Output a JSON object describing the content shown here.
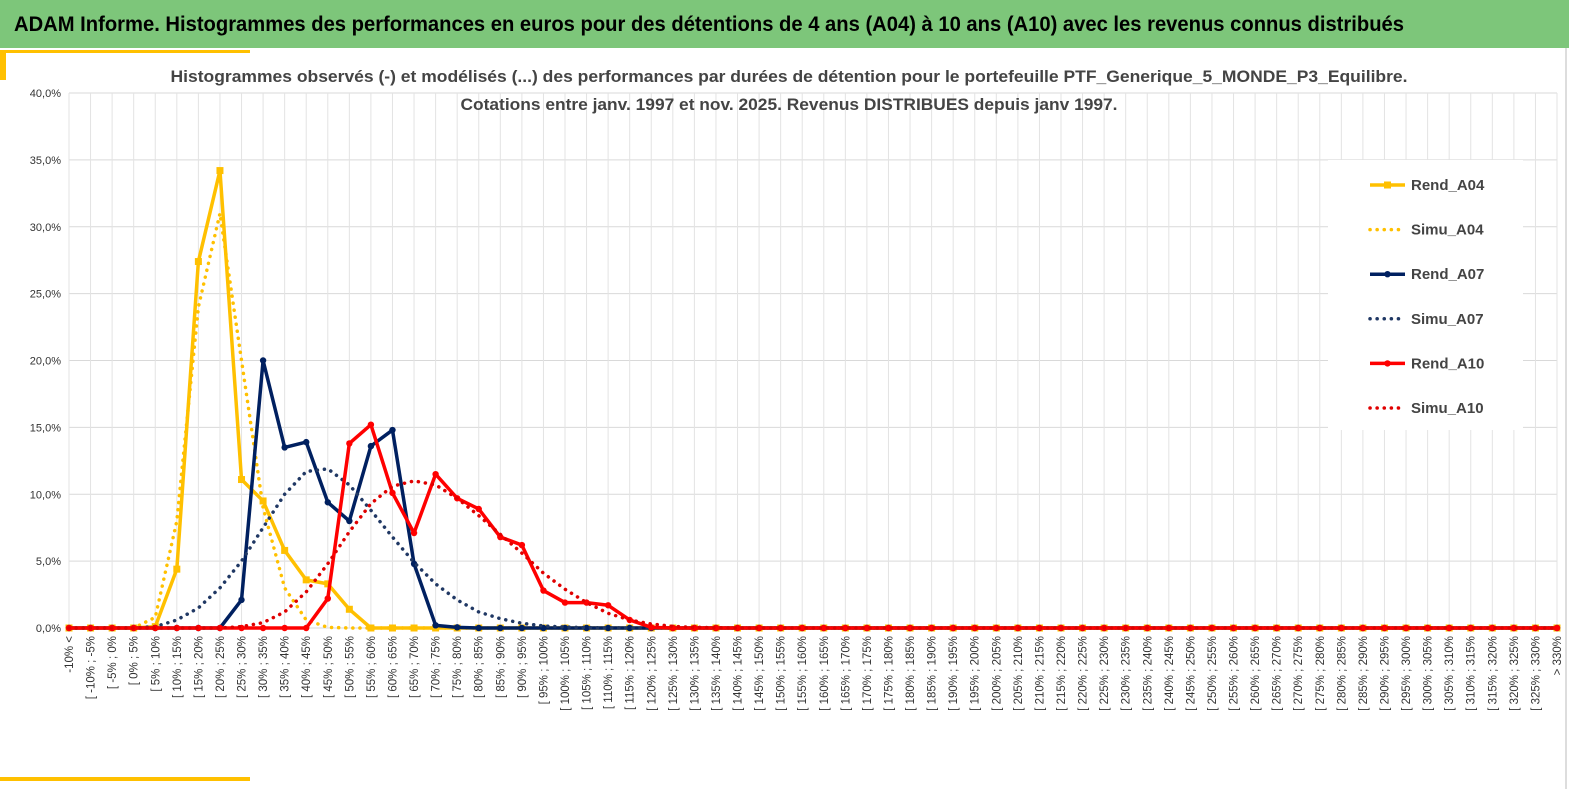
{
  "header": "ADAM Informe. Histogrammes des performances en euros pour des détentions de 4 ans (A04) à 10 ans (A10) avec les revenus connus distribués",
  "chart_data": {
    "type": "line",
    "title": "Histogrammes observés (-) et modélisés (...) des performances par durées de détention pour le portefeuille PTF_Generique_5_MONDE_P3_Equilibre.",
    "subtitle": "Cotations entre janv. 1997 et nov. 2025. Revenus DISTRIBUES depuis janv 1997.",
    "categories": [
      "-10% <",
      "[ -10% ; -5%",
      "[ -5% ; 0%",
      "[ 0% ; 5%",
      "[ 5% ; 10%",
      "[ 10% ; 15%",
      "[ 15% ; 20%",
      "[ 20% ; 25%",
      "[ 25% ; 30%",
      "[ 30% ; 35%",
      "[ 35% ; 40%",
      "[ 40% ; 45%",
      "[ 45% ; 50%",
      "[ 50% ; 55%",
      "[ 55% ; 60%",
      "[ 60% ; 65%",
      "[ 65% ; 70%",
      "[ 70% ; 75%",
      "[ 75% ; 80%",
      "[ 80% ; 85%",
      "[ 85% ; 90%",
      "[ 90% ; 95%",
      "[ 95% ; 100%",
      "[ 100% ; 105%",
      "[ 105% ; 110%",
      "[ 110% ; 115%",
      "[ 115% ; 120%",
      "[ 120% ; 125%",
      "[ 125% ; 130%",
      "[ 130% ; 135%",
      "[ 135% ; 140%",
      "[ 140% ; 145%",
      "[ 145% ; 150%",
      "[ 150% ; 155%",
      "[ 155% ; 160%",
      "[ 160% ; 165%",
      "[ 165% ; 170%",
      "[ 170% ; 175%",
      "[ 175% ; 180%",
      "[ 180% ; 185%",
      "[ 185% ; 190%",
      "[ 190% ; 195%",
      "[ 195% ; 200%",
      "[ 200% ; 205%",
      "[ 205% ; 210%",
      "[ 210% ; 215%",
      "[ 215% ; 220%",
      "[ 220% ; 225%",
      "[ 225% ; 230%",
      "[ 230% ; 235%",
      "[ 235% ; 240%",
      "[ 240% ; 245%",
      "[ 245% ; 250%",
      "[ 250% ; 255%",
      "[ 255% ; 260%",
      "[ 260% ; 265%",
      "[ 265% ; 270%",
      "[ 270% ; 275%",
      "[ 275% ; 280%",
      "[ 280% ; 285%",
      "[ 285% ; 290%",
      "[ 290% ; 295%",
      "[ 295% ; 300%",
      "[ 300% ; 305%",
      "[ 305% ; 310%",
      "[ 310% ; 315%",
      "[ 315% ; 320%",
      "[ 320% ; 325%",
      "[ 325% ; 330%",
      "> 330%"
    ],
    "series": [
      {
        "name": "Rend_A04",
        "color": "#ffc000",
        "dashed": false,
        "marker": "square",
        "values": [
          0,
          0,
          0,
          0,
          0.1,
          4.4,
          27.4,
          34.2,
          11.1,
          9.5,
          5.8,
          3.6,
          3.3,
          1.4,
          0,
          0,
          0,
          0,
          0,
          0,
          0,
          0,
          0,
          0,
          0,
          0,
          0,
          0,
          0,
          0,
          0,
          0,
          0,
          0,
          0,
          0,
          0,
          0,
          0,
          0,
          0,
          0,
          0,
          0,
          0,
          0,
          0,
          0,
          0,
          0,
          0,
          0,
          0,
          0,
          0,
          0,
          0,
          0,
          0,
          0,
          0,
          0,
          0,
          0,
          0,
          0,
          0,
          0,
          0,
          0
        ]
      },
      {
        "name": "Simu_A04",
        "color": "#ffc000",
        "dashed": true,
        "marker": "none",
        "values": [
          0,
          0,
          0,
          0,
          0.8,
          8,
          24,
          31,
          20,
          9,
          3,
          0.6,
          0.05,
          0,
          0,
          0,
          0,
          0,
          0,
          0,
          0,
          0,
          0,
          0,
          0,
          0,
          0,
          0,
          0,
          0,
          0,
          0,
          0,
          0,
          0,
          0,
          0,
          0,
          0,
          0,
          0,
          0,
          0,
          0,
          0,
          0,
          0,
          0,
          0,
          0,
          0,
          0,
          0,
          0,
          0,
          0,
          0,
          0,
          0,
          0,
          0,
          0,
          0,
          0,
          0,
          0,
          0,
          0,
          0,
          0
        ]
      },
      {
        "name": "Rend_A07",
        "color": "#002060",
        "dashed": false,
        "marker": "circle",
        "values": [
          0,
          0,
          0,
          0,
          0,
          0,
          0,
          0,
          2.1,
          20,
          13.5,
          13.9,
          9.4,
          8,
          13.6,
          14.8,
          4.8,
          0.2,
          0.05,
          0,
          0,
          0,
          0,
          0,
          0,
          0,
          0,
          0,
          0,
          0,
          0,
          0,
          0,
          0,
          0,
          0,
          0,
          0,
          0,
          0,
          0,
          0,
          0,
          0,
          0,
          0,
          0,
          0,
          0,
          0,
          0,
          0,
          0,
          0,
          0,
          0,
          0,
          0,
          0,
          0,
          0,
          0,
          0,
          0,
          0,
          0,
          0,
          0,
          0,
          0
        ]
      },
      {
        "name": "Simu_A07",
        "color": "#203864",
        "dashed": true,
        "marker": "none",
        "values": [
          0,
          0,
          0,
          0,
          0.1,
          0.6,
          1.5,
          3,
          5,
          7.5,
          10,
          11.7,
          11.9,
          10.7,
          8.8,
          6.8,
          4.9,
          3.3,
          2.1,
          1.2,
          0.7,
          0.35,
          0.15,
          0.07,
          0.03,
          0.01,
          0,
          0,
          0,
          0,
          0,
          0,
          0,
          0,
          0,
          0,
          0,
          0,
          0,
          0,
          0,
          0,
          0,
          0,
          0,
          0,
          0,
          0,
          0,
          0,
          0,
          0,
          0,
          0,
          0,
          0,
          0,
          0,
          0,
          0,
          0,
          0,
          0,
          0,
          0,
          0,
          0,
          0,
          0,
          0
        ]
      },
      {
        "name": "Rend_A10",
        "color": "#ff0000",
        "dashed": false,
        "marker": "circle",
        "values": [
          0,
          0,
          0,
          0,
          0,
          0,
          0,
          0,
          0,
          0,
          0,
          0,
          2.2,
          13.8,
          15.2,
          10.1,
          7.1,
          11.5,
          9.7,
          8.9,
          6.8,
          6.2,
          2.8,
          1.9,
          1.9,
          1.7,
          0.6,
          0.05,
          0,
          0,
          0,
          0,
          0,
          0,
          0,
          0,
          0,
          0,
          0,
          0,
          0,
          0,
          0,
          0,
          0,
          0,
          0,
          0,
          0,
          0,
          0,
          0,
          0,
          0,
          0,
          0,
          0,
          0,
          0,
          0,
          0,
          0,
          0,
          0,
          0,
          0,
          0,
          0,
          0,
          0
        ]
      },
      {
        "name": "Simu_A10",
        "color": "#e00000",
        "dashed": true,
        "marker": "none",
        "values": [
          0,
          0,
          0,
          0,
          0,
          0,
          0,
          0,
          0.1,
          0.4,
          1.2,
          2.7,
          4.8,
          7.2,
          9.3,
          10.6,
          11,
          10.7,
          9.7,
          8.4,
          7,
          5.6,
          4.1,
          2.9,
          1.9,
          1.1,
          0.6,
          0.3,
          0.12,
          0.05,
          0.02,
          0,
          0,
          0,
          0,
          0,
          0,
          0,
          0,
          0,
          0,
          0,
          0,
          0,
          0,
          0,
          0,
          0,
          0,
          0,
          0,
          0,
          0,
          0,
          0,
          0,
          0,
          0,
          0,
          0,
          0,
          0,
          0,
          0,
          0,
          0,
          0,
          0,
          0,
          0
        ]
      }
    ],
    "ylim": [
      0,
      40
    ],
    "yticks": [
      {
        "value": 0,
        "label": "0,0%"
      },
      {
        "value": 5,
        "label": "5,0%"
      },
      {
        "value": 10,
        "label": "10,0%"
      },
      {
        "value": 15,
        "label": "15,0%"
      },
      {
        "value": 20,
        "label": "20,0%"
      },
      {
        "value": 25,
        "label": "25,0%"
      },
      {
        "value": 30,
        "label": "30,0%"
      },
      {
        "value": 35,
        "label": "35,0%"
      },
      {
        "value": 40,
        "label": "40,0%"
      }
    ],
    "grid": true,
    "legend": "right"
  }
}
